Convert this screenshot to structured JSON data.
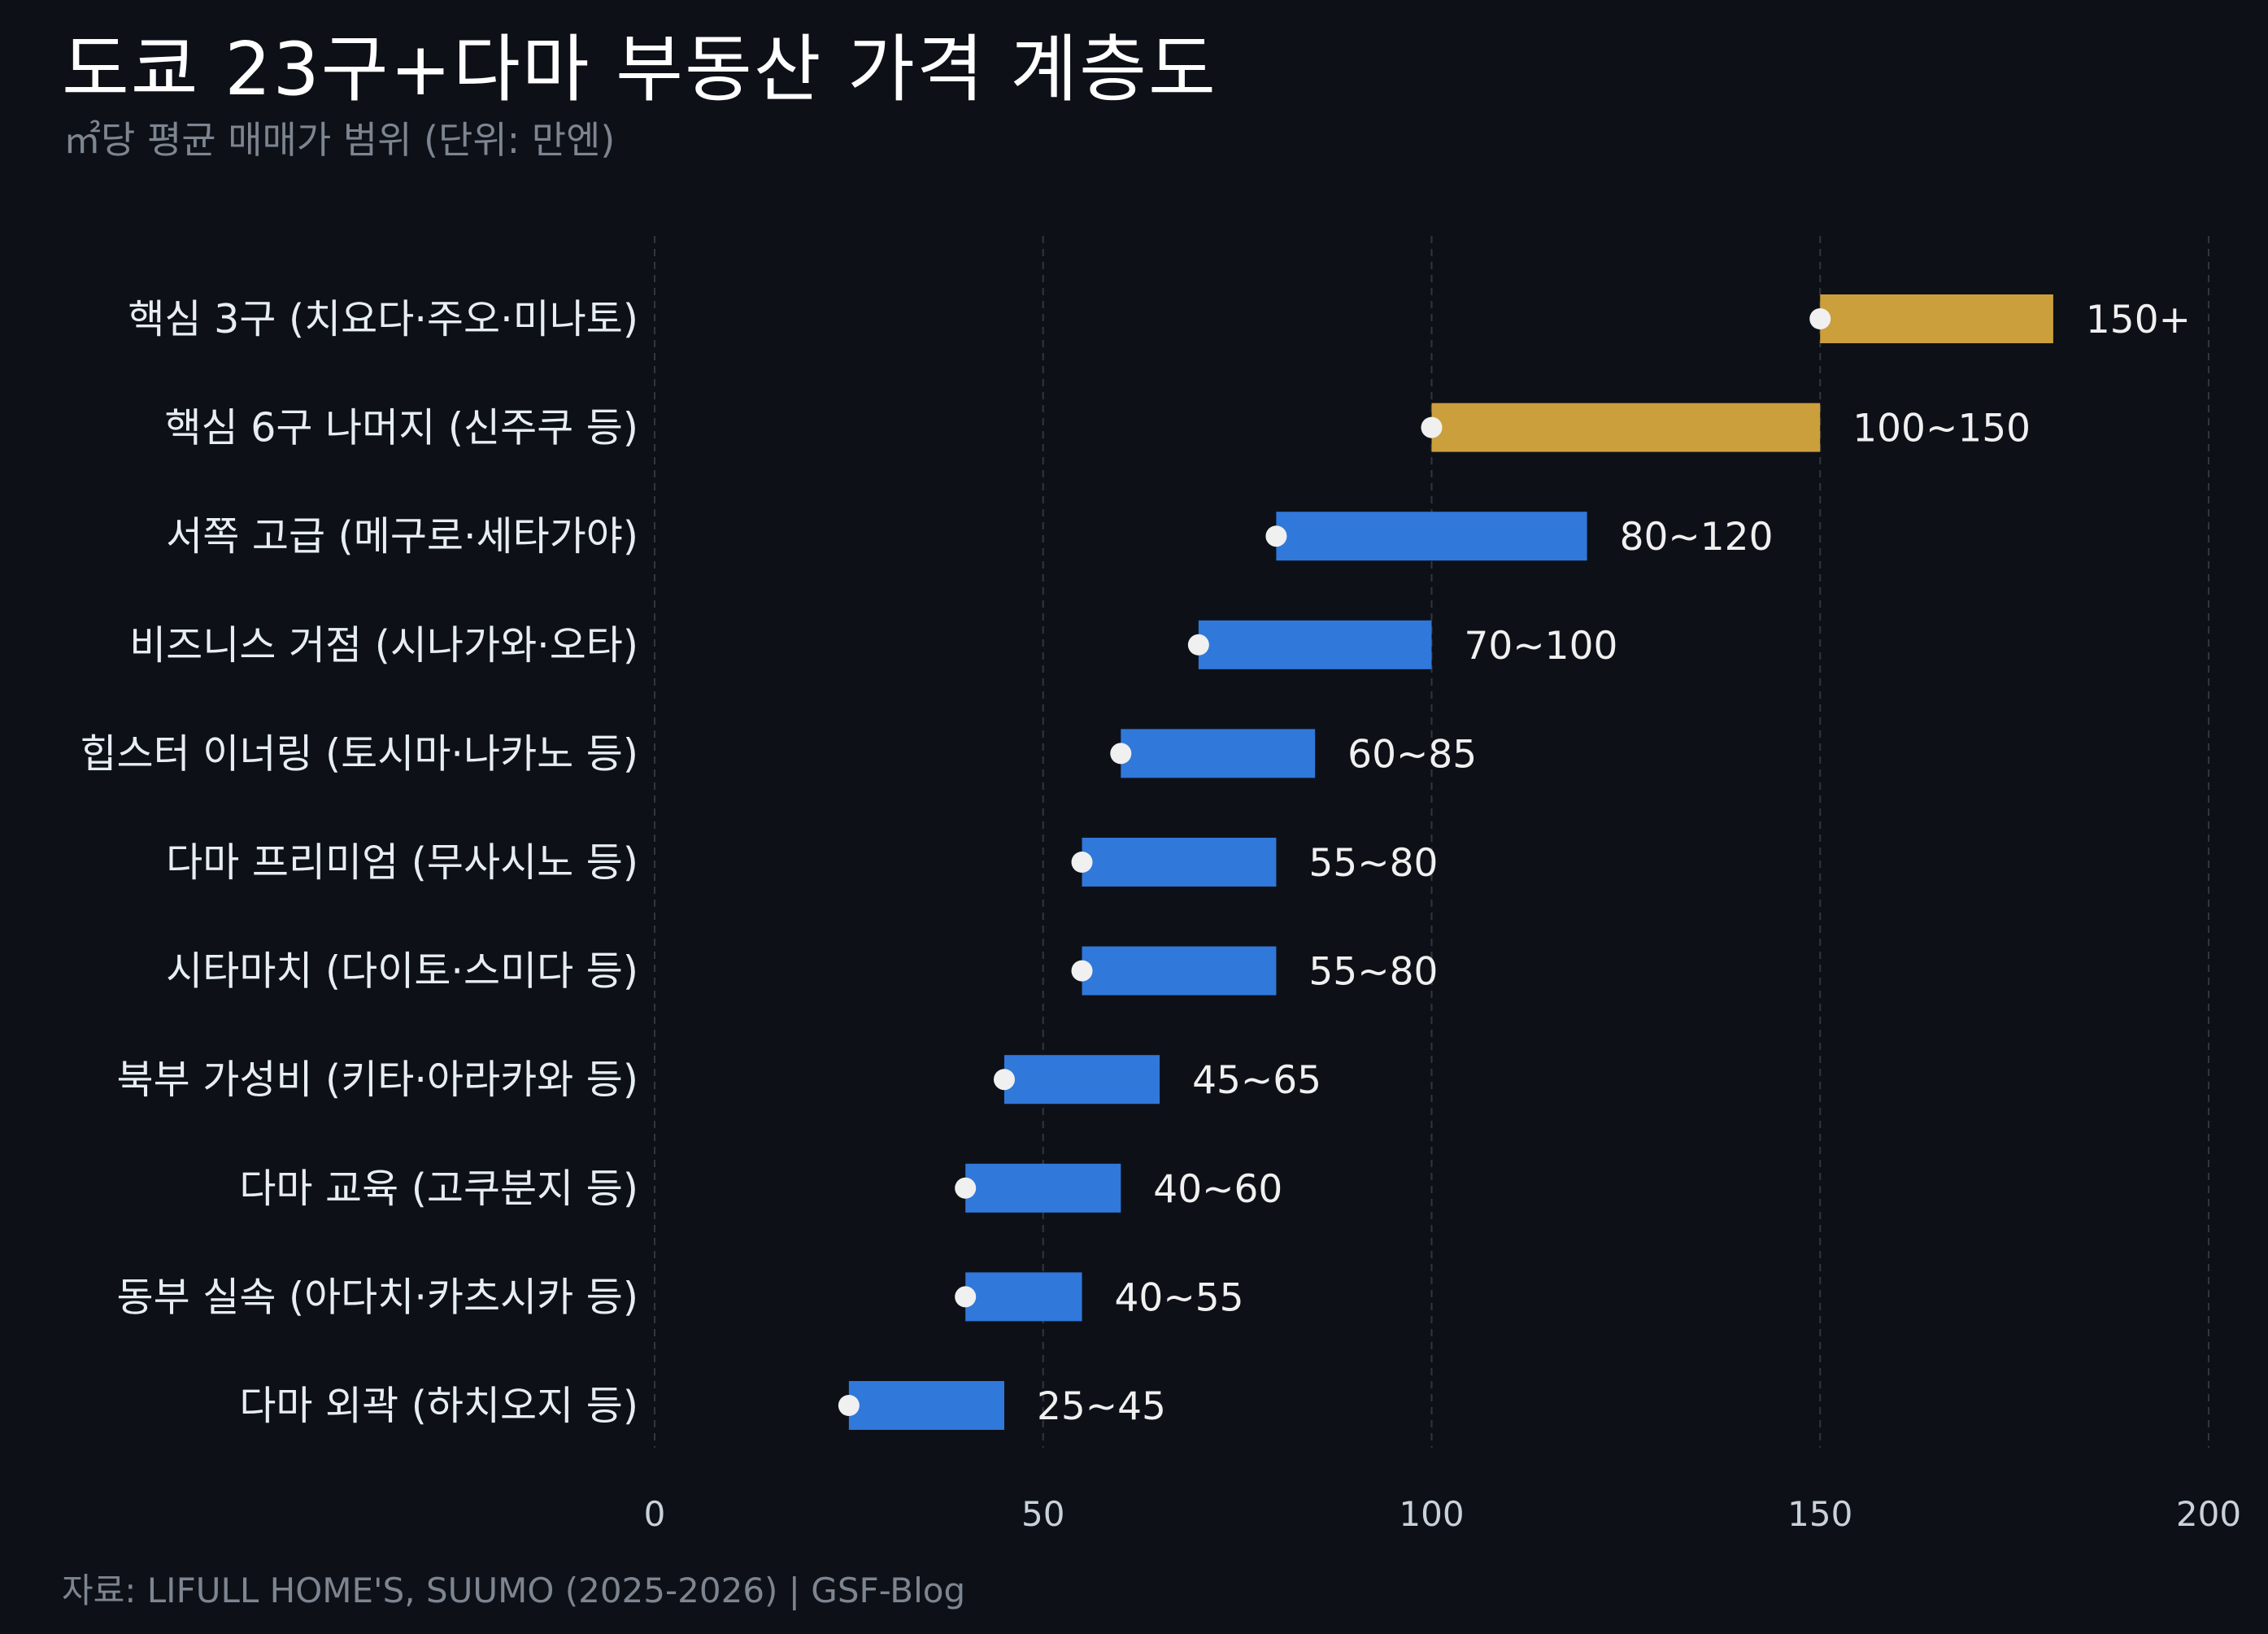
{
  "colors": {
    "background": "#0d1117",
    "premium_bar": "#cc9f3d",
    "standard_bar": "#3178db",
    "marker": "#f0f0f0",
    "grid": "#30363d",
    "category_label": "#e6edf3",
    "value_label": "#f0f0f0",
    "tick_label": "#c9d1d9",
    "muted_text": "#7d8590"
  },
  "chart_data": {
    "type": "bar",
    "orientation": "horizontal",
    "title": "도쿄 23구+다마 부동산 가격 계층도",
    "subtitle": "㎡당 평균 매매가 범위 (단위: 만엔)",
    "xlim": [
      0,
      200
    ],
    "x_ticks": [
      "0",
      "50",
      "100",
      "150",
      "200"
    ],
    "grid": true,
    "categories": [
      "핵심 3구 (치요다·주오·미나토)",
      "핵심 6구 나머지 (신주쿠 등)",
      "서쪽 고급 (메구로·세타가야)",
      "비즈니스 거점 (시나가와·오타)",
      "힙스터 이너링 (토시마·나카노 등)",
      "다마 프리미엄 (무사시노 등)",
      "시타마치 (다이토·스미다 등)",
      "북부 가성비 (키타·아라카와 등)",
      "다마 교육 (고쿠분지 등)",
      "동부 실속 (아다치·카츠시카 등)",
      "다마 외곽 (하치오지 등)"
    ],
    "ranges": [
      {
        "low": 150,
        "high": 180,
        "label": "150+",
        "tier": "premium"
      },
      {
        "low": 100,
        "high": 150,
        "label": "100~150",
        "tier": "premium"
      },
      {
        "low": 80,
        "high": 120,
        "label": "80~120",
        "tier": "standard"
      },
      {
        "low": 70,
        "high": 100,
        "label": "70~100",
        "tier": "standard"
      },
      {
        "low": 60,
        "high": 85,
        "label": "60~85",
        "tier": "standard"
      },
      {
        "low": 55,
        "high": 80,
        "label": "55~80",
        "tier": "standard"
      },
      {
        "low": 55,
        "high": 80,
        "label": "55~80",
        "tier": "standard"
      },
      {
        "low": 45,
        "high": 65,
        "label": "45~65",
        "tier": "standard"
      },
      {
        "low": 40,
        "high": 60,
        "label": "40~60",
        "tier": "standard"
      },
      {
        "low": 40,
        "high": 55,
        "label": "40~55",
        "tier": "standard"
      },
      {
        "low": 25,
        "high": 45,
        "label": "25~45",
        "tier": "standard"
      }
    ]
  },
  "source": "자료: LIFULL HOME'S, SUUMO (2025-2026) | GSF-Blog"
}
